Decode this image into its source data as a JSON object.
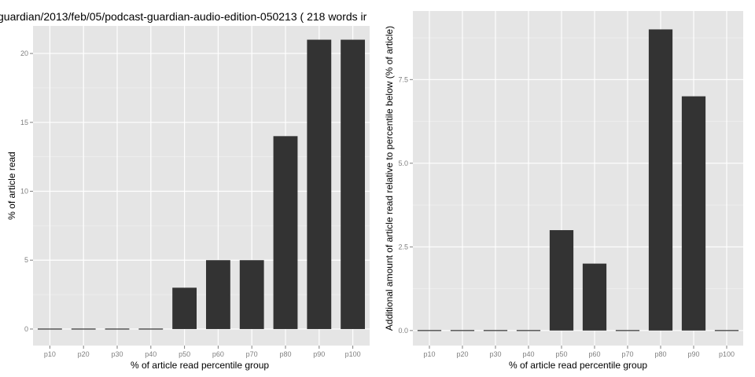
{
  "chart_data": [
    {
      "type": "bar",
      "title": "guardian/2013/feb/05/podcast-guardian-audio-edition-050213 ( 218 words ir",
      "xlabel": "% of article read percentile group",
      "ylabel": "% of article read",
      "categories": [
        "p10",
        "p20",
        "p30",
        "p40",
        "p50",
        "p60",
        "p70",
        "p80",
        "p90",
        "p100"
      ],
      "values": [
        0,
        0,
        0,
        0,
        3,
        5,
        5,
        14,
        21,
        21
      ],
      "ylim": [
        -1.2,
        22
      ],
      "yticks": [
        0,
        5,
        10,
        15,
        20
      ],
      "ytick_labels": [
        "0",
        "5",
        "10",
        "15",
        "20"
      ],
      "grid": true,
      "bar_color": "#333333",
      "panel_color": "#e5e5e5",
      "grid_color": "#ffffff"
    },
    {
      "type": "bar",
      "title": "",
      "xlabel": "% of article read percentile group",
      "ylabel": "Additional amount of article read relative to percentile below (% of article)",
      "categories": [
        "p10",
        "p20",
        "p30",
        "p40",
        "p50",
        "p60",
        "p70",
        "p80",
        "p90",
        "p100"
      ],
      "values": [
        0,
        0,
        0,
        0,
        3,
        2,
        0,
        9,
        7,
        0
      ],
      "ylim": [
        -0.45,
        9.55
      ],
      "yticks": [
        0,
        2.5,
        5,
        7.5
      ],
      "ytick_labels": [
        "0.0",
        "2.5",
        "5.0",
        "7.5"
      ],
      "grid": true,
      "bar_color": "#333333",
      "panel_color": "#e5e5e5",
      "grid_color": "#ffffff"
    }
  ]
}
